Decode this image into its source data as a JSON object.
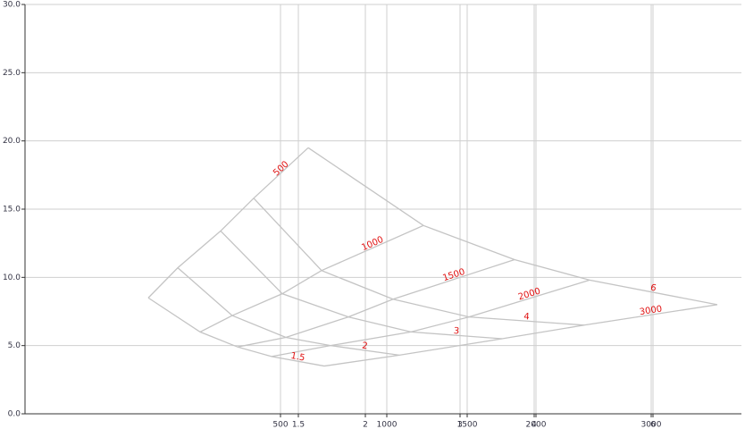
{
  "chart_data": {
    "type": "carpet",
    "xlim": [
      0,
      802
    ],
    "ylim": [
      0,
      30
    ],
    "yticks": [
      {
        "value": 0,
        "label": "0.0"
      },
      {
        "value": 5,
        "label": "5.0"
      },
      {
        "value": 10,
        "label": "10.0"
      },
      {
        "value": 15,
        "label": "15.0"
      },
      {
        "value": 20,
        "label": "20.0"
      },
      {
        "value": 25,
        "label": "25.0"
      },
      {
        "value": 30,
        "label": "30.0"
      }
    ],
    "grid": true,
    "line_color": "#c4c4c4",
    "label_color": "#e01010",
    "a": {
      "values": [
        500,
        1000,
        1500,
        2000,
        3000
      ],
      "x": [
        286,
        405,
        495,
        572,
        701
      ]
    },
    "b": {
      "values": [
        1.5,
        2,
        3,
        4,
        6
      ],
      "x": [
        306,
        381,
        487,
        570,
        703
      ]
    },
    "x": [
      [
        138,
        171,
        219,
        256,
        317
      ],
      [
        196,
        232,
        288,
        332,
        446
      ],
      [
        238,
        292,
        362,
        412,
        548
      ],
      [
        276,
        342,
        432,
        497,
        632
      ],
      [
        335,
        419,
        534,
        626,
        775
      ]
    ],
    "y": [
      [
        8.5,
        10.7,
        13.4,
        15.8,
        19.5
      ],
      [
        6.0,
        7.2,
        8.8,
        10.5,
        13.8
      ],
      [
        4.9,
        5.6,
        7.1,
        8.4,
        11.3
      ],
      [
        4.2,
        5.0,
        6.0,
        7.1,
        9.8
      ],
      [
        3.5,
        4.3,
        5.5,
        6.5,
        8.0
      ]
    ]
  }
}
